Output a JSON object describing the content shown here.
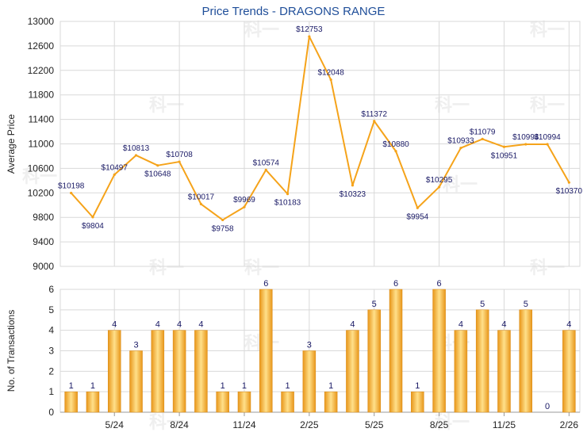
{
  "colors": {
    "title": "#1f4e99",
    "line": "#f5a31a",
    "grid": "#d9d9d9",
    "axis": "#999999",
    "bar_dark": "#e8961a",
    "bar_light": "#ffe08a",
    "label": "#1a1a66"
  },
  "watermark": "科一",
  "chart_data": [
    {
      "type": "line",
      "title": "Price Trends - DRAGONS RANGE",
      "ylabel": "Average Price",
      "ylim": [
        9000,
        13000
      ],
      "yticks": [
        9000,
        9400,
        9800,
        10200,
        10600,
        11000,
        11400,
        11800,
        12200,
        12600,
        13000
      ],
      "grid": true,
      "points": [
        {
          "i": 0,
          "value": 10198,
          "label": "$10198"
        },
        {
          "i": 1,
          "value": 9804,
          "label": "$9804"
        },
        {
          "i": 2,
          "value": 10497,
          "label": "$10497"
        },
        {
          "i": 3,
          "value": 10813,
          "label": "$10813"
        },
        {
          "i": 4,
          "value": 10648,
          "label": "$10648"
        },
        {
          "i": 5,
          "value": 10708,
          "label": "$10708"
        },
        {
          "i": 6,
          "value": 10017,
          "label": "$10017"
        },
        {
          "i": 7,
          "value": 9758,
          "label": "$9758"
        },
        {
          "i": 8,
          "value": 9969,
          "label": "$9969"
        },
        {
          "i": 9,
          "value": 10574,
          "label": "$10574"
        },
        {
          "i": 10,
          "value": 10183,
          "label": "$10183"
        },
        {
          "i": 11,
          "value": 12753,
          "label": "$12753"
        },
        {
          "i": 12,
          "value": 12048,
          "label": "$12048"
        },
        {
          "i": 13,
          "value": 10323,
          "label": "$10323"
        },
        {
          "i": 14,
          "value": 11372,
          "label": "$11372"
        },
        {
          "i": 15,
          "value": 10880,
          "label": "$10880"
        },
        {
          "i": 16,
          "value": 9954,
          "label": "$9954"
        },
        {
          "i": 17,
          "value": 10295,
          "label": "$10295"
        },
        {
          "i": 18,
          "value": 10933,
          "label": "$10933"
        },
        {
          "i": 19,
          "value": 11079,
          "label": "$11079"
        },
        {
          "i": 20,
          "value": 10951,
          "label": "$10951"
        },
        {
          "i": 21,
          "value": 10994,
          "label": "$10994"
        },
        {
          "i": 22,
          "value": 10994,
          "label": "$10994"
        },
        {
          "i": 23,
          "value": 10370,
          "label": "$10370"
        }
      ]
    },
    {
      "type": "bar",
      "ylabel": "No. of Transactions",
      "ylim": [
        0,
        6
      ],
      "yticks": [
        0,
        1,
        2,
        3,
        4,
        5,
        6
      ],
      "grid": true,
      "xticks": [
        {
          "i": 2,
          "label": "5/24"
        },
        {
          "i": 5,
          "label": "8/24"
        },
        {
          "i": 8,
          "label": "11/24"
        },
        {
          "i": 11,
          "label": "2/25"
        },
        {
          "i": 14,
          "label": "5/25"
        },
        {
          "i": 17,
          "label": "8/25"
        },
        {
          "i": 20,
          "label": "11/25"
        },
        {
          "i": 23,
          "label": "2/26"
        }
      ],
      "values": [
        1,
        1,
        4,
        3,
        4,
        4,
        4,
        1,
        1,
        6,
        1,
        3,
        1,
        4,
        5,
        6,
        1,
        6,
        4,
        5,
        4,
        5,
        0,
        4
      ]
    }
  ]
}
